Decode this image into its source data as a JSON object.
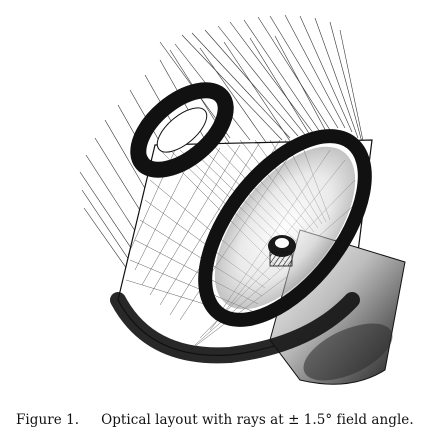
{
  "figure": {
    "subject": "Optical layout (ray trace) of a telescope with primary and secondary mirrors, rendered in black ink on white",
    "ink_color": "#111111",
    "background_color": "#ffffff",
    "caption": {
      "label": "Figure 1.",
      "text": "Optical layout with rays at ± 1.5° field angle."
    }
  }
}
